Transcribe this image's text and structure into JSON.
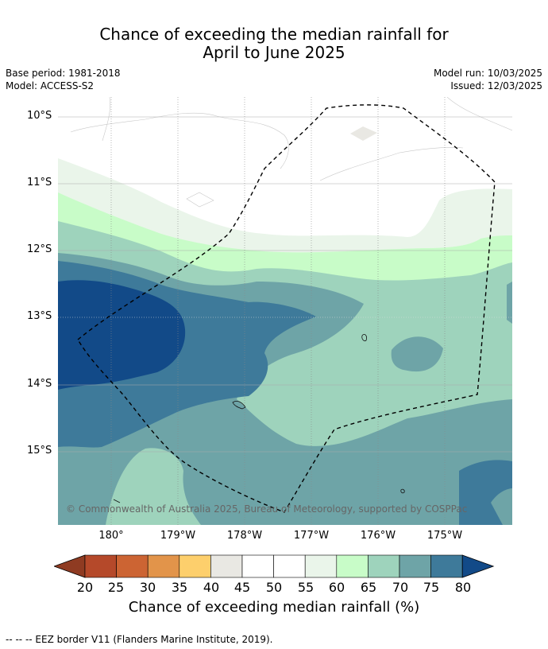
{
  "title_line1": "Chance of exceeding the median rainfall for",
  "title_line2": "April to June 2025",
  "base_period": "Base period: 1981-2018",
  "model": "Model: ACCESS-S2",
  "model_run": "Model run: 10/03/2025",
  "issued": "Issued: 12/03/2025",
  "lat_labels": [
    "10°S",
    "11°S",
    "12°S",
    "13°S",
    "14°S",
    "15°S"
  ],
  "lon_labels": [
    "180°",
    "179°W",
    "178°W",
    "177°W",
    "176°W",
    "175°W"
  ],
  "copyright": "© Commonwealth of Australia 2025, Bureau of Meteorology, supported by COSPPac",
  "colorbar": {
    "ticks": [
      "20",
      "25",
      "30",
      "35",
      "40",
      "45",
      "50",
      "55",
      "60",
      "65",
      "70",
      "75",
      "80"
    ],
    "colors": [
      "#8f3b22",
      "#b5492a",
      "#cc6433",
      "#e2944a",
      "#fdcf6c",
      "#e9e8e3",
      "#ffffff",
      "#ffffff",
      "#eaf5ea",
      "#c8fcc8",
      "#9ed3bc",
      "#6ea4a7",
      "#3e7a9a",
      "#124a88"
    ],
    "label": "Chance of exceeding median rainfall (%)"
  },
  "footnote": "--  --  -- EEZ border V11 (Flanders Marine Institute, 2019)."
}
